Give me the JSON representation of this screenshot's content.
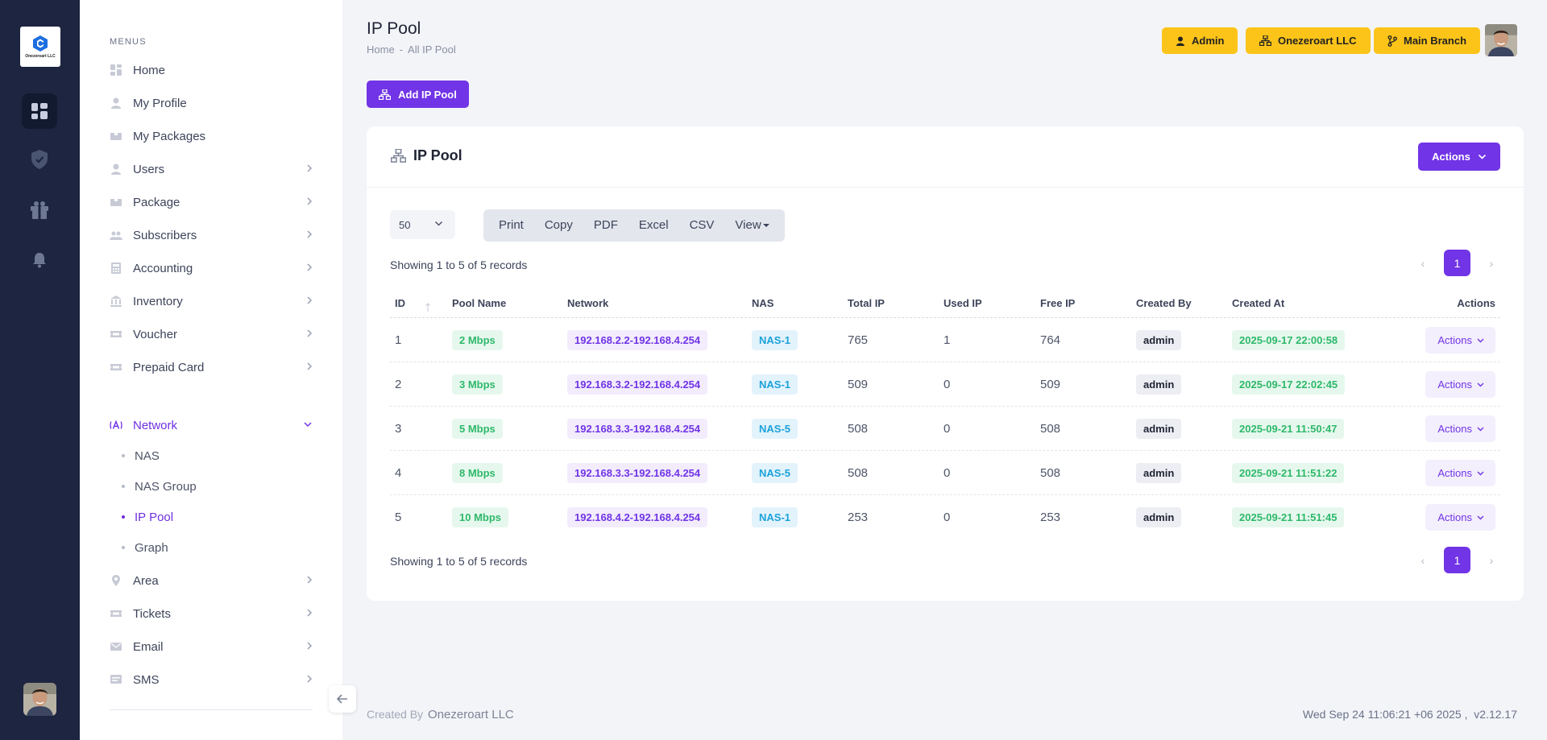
{
  "rail": {
    "logo_caption": "Onezeroart LLC",
    "icons": [
      "dashboard-icon",
      "shield-icon",
      "gift-icon",
      "bell-icon"
    ]
  },
  "sidebar": {
    "title": "MENUS",
    "items": [
      {
        "label": "Home",
        "icon": "home-icon",
        "chevron": false
      },
      {
        "label": "My Profile",
        "icon": "user-icon",
        "chevron": false
      },
      {
        "label": "My Packages",
        "icon": "box-icon",
        "chevron": false
      },
      {
        "label": "Users",
        "icon": "user-icon",
        "chevron": true
      },
      {
        "label": "Package",
        "icon": "box-icon",
        "chevron": true
      },
      {
        "label": "Subscribers",
        "icon": "users-icon",
        "chevron": true
      },
      {
        "label": "Accounting",
        "icon": "calculator-icon",
        "chevron": true
      },
      {
        "label": "Inventory",
        "icon": "bank-icon",
        "chevron": true
      },
      {
        "label": "Voucher",
        "icon": "ticket-icon",
        "chevron": true
      },
      {
        "label": "Prepaid Card",
        "icon": "ticket-icon",
        "chevron": true
      }
    ],
    "network": {
      "label": "Network",
      "icon": "network-icon",
      "sub": [
        "NAS",
        "NAS Group",
        "IP Pool",
        "Graph"
      ],
      "active_sub": "IP Pool"
    },
    "items_after": [
      {
        "label": "Area",
        "icon": "pin-icon",
        "chevron": true
      },
      {
        "label": "Tickets",
        "icon": "ticket-icon",
        "chevron": true
      },
      {
        "label": "Email",
        "icon": "mail-icon",
        "chevron": true
      },
      {
        "label": "SMS",
        "icon": "message-icon",
        "chevron": true
      }
    ]
  },
  "header": {
    "title": "IP Pool",
    "breadcrumb": [
      "Home",
      "-",
      "All IP Pool"
    ],
    "buttons": {
      "admin": "Admin",
      "company": "Onezeroart LLC",
      "branch": "Main Branch"
    }
  },
  "add_button": "Add IP Pool",
  "card": {
    "title": "IP Pool",
    "actions_label": "Actions",
    "page_length": "50",
    "export_buttons": [
      "Print",
      "Copy",
      "PDF",
      "Excel",
      "CSV",
      "View"
    ],
    "info_text": "Showing 1 to 5 of 5 records",
    "current_page": "1",
    "columns": [
      "ID",
      "Pool Name",
      "Network",
      "NAS",
      "Total IP",
      "Used IP",
      "Free IP",
      "Created By",
      "Created At",
      "Actions"
    ],
    "row_action_label": "Actions",
    "rows": [
      {
        "id": "1",
        "pool": "2 Mbps",
        "network": "192.168.2.2-192.168.4.254",
        "nas": "NAS-1",
        "total": "765",
        "used": "1",
        "free": "764",
        "by": "admin",
        "at": "2025-09-17 22:00:58"
      },
      {
        "id": "2",
        "pool": "3 Mbps",
        "network": "192.168.3.2-192.168.4.254",
        "nas": "NAS-1",
        "total": "509",
        "used": "0",
        "free": "509",
        "by": "admin",
        "at": "2025-09-17 22:02:45"
      },
      {
        "id": "3",
        "pool": "5 Mbps",
        "network": "192.168.3.3-192.168.4.254",
        "nas": "NAS-5",
        "total": "508",
        "used": "0",
        "free": "508",
        "by": "admin",
        "at": "2025-09-21 11:50:47"
      },
      {
        "id": "4",
        "pool": "8 Mbps",
        "network": "192.168.3.3-192.168.4.254",
        "nas": "NAS-5",
        "total": "508",
        "used": "0",
        "free": "508",
        "by": "admin",
        "at": "2025-09-21 11:51:22"
      },
      {
        "id": "5",
        "pool": "10 Mbps",
        "network": "192.168.4.2-192.168.4.254",
        "nas": "NAS-1",
        "total": "253",
        "used": "0",
        "free": "253",
        "by": "admin",
        "at": "2025-09-21 11:51:45"
      }
    ]
  },
  "footer": {
    "created_by_label": "Created By",
    "company": "Onezeroart LLC",
    "datetime": "Wed Sep 24 11:06:21 +06 2025 ,",
    "version": "v2.12.17"
  },
  "colors": {
    "rail": "#1d2540",
    "accent": "#7134e6",
    "yellow": "#fcc419"
  }
}
